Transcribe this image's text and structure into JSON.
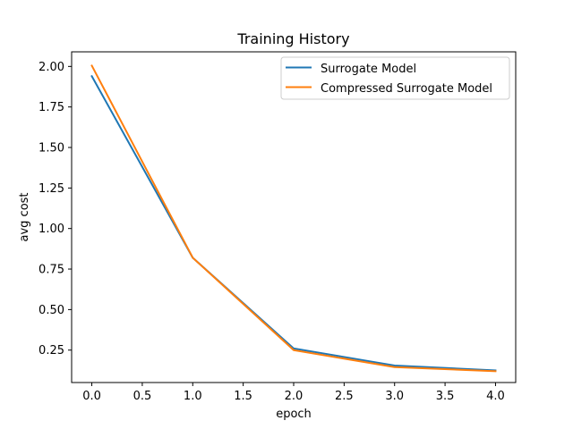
{
  "chart_data": {
    "type": "line",
    "title": "Training History",
    "xlabel": "epoch",
    "ylabel": "avg cost",
    "x": [
      0,
      1,
      2,
      3,
      4
    ],
    "series": [
      {
        "name": "Surrogate Model",
        "color": "#1f77b4",
        "values": [
          1.94,
          0.82,
          0.26,
          0.155,
          0.125
        ]
      },
      {
        "name": "Compressed Surrogate Model",
        "color": "#ff7f0e",
        "values": [
          2.005,
          0.82,
          0.25,
          0.145,
          0.12
        ]
      }
    ],
    "xlim": [
      -0.2,
      4.2
    ],
    "ylim": [
      0.05,
      2.09
    ],
    "xticks": [
      0.0,
      0.5,
      1.0,
      1.5,
      2.0,
      2.5,
      3.0,
      3.5,
      4.0
    ],
    "xtick_labels": [
      "0.0",
      "0.5",
      "1.0",
      "1.5",
      "2.0",
      "2.5",
      "3.0",
      "3.5",
      "4.0"
    ],
    "yticks": [
      0.25,
      0.5,
      0.75,
      1.0,
      1.25,
      1.5,
      1.75,
      2.0
    ],
    "ytick_labels": [
      "0.25",
      "0.50",
      "0.75",
      "1.00",
      "1.25",
      "1.50",
      "1.75",
      "2.00"
    ],
    "legend_position": "top-right",
    "grid": false
  }
}
